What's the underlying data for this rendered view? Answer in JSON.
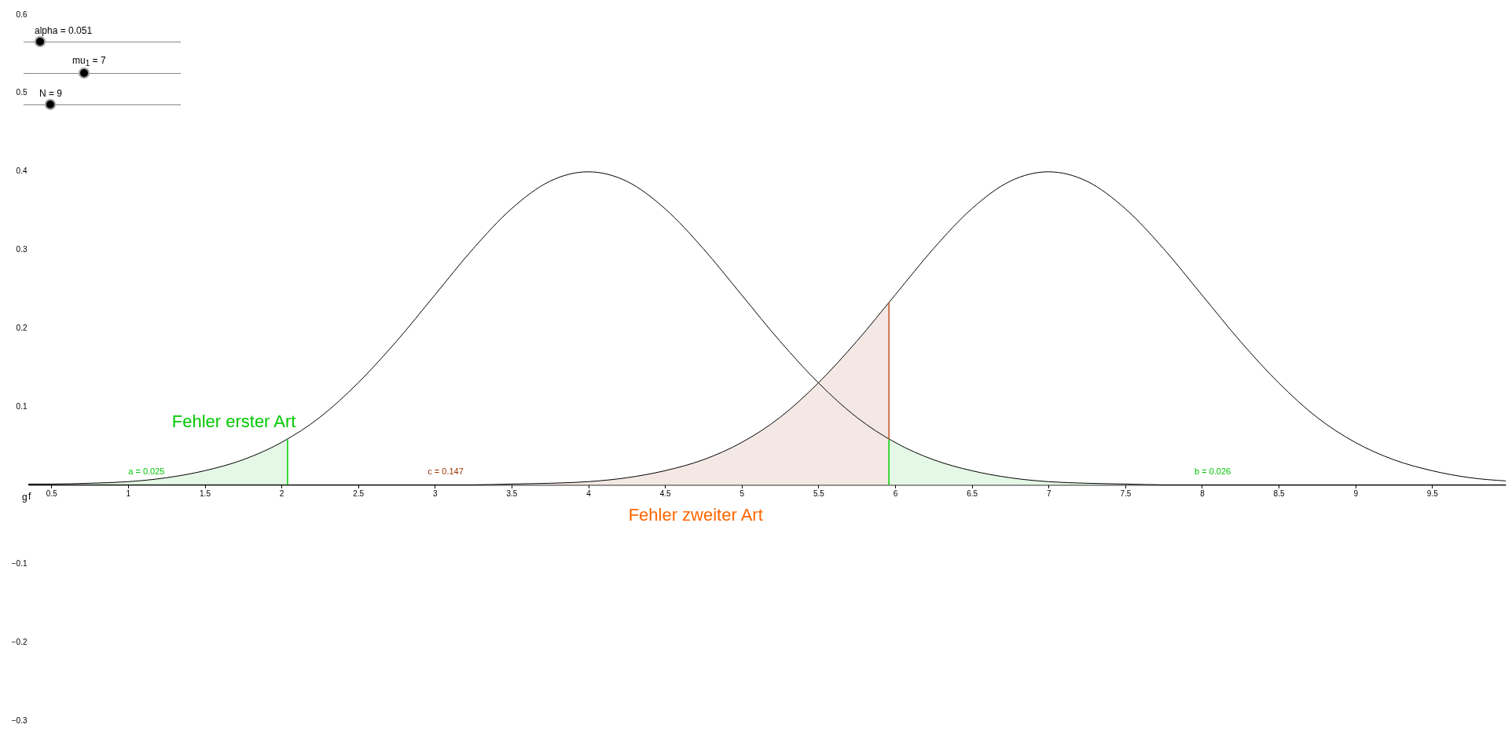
{
  "chart_data": {
    "type": "line",
    "xlim": [
      0.35,
      9.98
    ],
    "ylim": [
      -0.3,
      0.6
    ],
    "xticks": [
      0.5,
      1,
      1.5,
      2,
      2.5,
      3,
      3.5,
      4,
      4.5,
      5,
      5.5,
      6,
      6.5,
      7,
      7.5,
      8,
      8.5,
      9,
      9.5
    ],
    "yticks": [
      {
        "value": -0.3,
        "label": "−0.3"
      },
      {
        "value": -0.2,
        "label": "−0.2"
      },
      {
        "value": -0.1,
        "label": "−0.1"
      },
      0.1,
      0.2,
      0.3,
      0.4,
      0.5,
      0.6
    ],
    "grid": false,
    "series": [
      {
        "type": "area",
        "color": "#e5f8e5",
        "x": [
          0.35,
          0.5,
          0.75,
          1,
          1.25,
          1.5,
          1.75,
          2,
          2.04
        ],
        "values": [
          0.001,
          0.001,
          0.002,
          0.004,
          0.009,
          0.018,
          0.032,
          0.054,
          0.058
        ]
      },
      {
        "type": "area",
        "color": "#f3e8e4",
        "x": [
          0.35,
          3.25,
          3.5,
          3.75,
          4,
          4.25,
          4.5,
          4.75,
          5,
          5.25,
          5.5,
          5.75,
          5.96
        ],
        "values": [
          0,
          0,
          0.001,
          0.002,
          0.004,
          0.009,
          0.018,
          0.032,
          0.054,
          0.086,
          0.13,
          0.183,
          0.232
        ]
      },
      {
        "type": "area",
        "color": "#e5f8e5",
        "x": [
          5.96,
          6,
          6.25,
          6.5,
          6.75,
          7,
          7.25,
          7.5,
          7.75,
          9.98
        ],
        "values": [
          0.058,
          0.054,
          0.032,
          0.018,
          0.009,
          0.004,
          0.002,
          0.001,
          0,
          0
        ]
      },
      {
        "type": "line",
        "name": "f",
        "color": "#000000",
        "x": [
          0.35,
          0.5,
          0.75,
          1,
          1.25,
          1.5,
          1.75,
          2,
          2.25,
          2.5,
          2.75,
          3,
          3.25,
          3.5,
          3.75,
          4,
          4.25,
          4.5,
          4.75,
          5,
          5.25,
          5.5,
          5.75,
          6,
          6.25,
          6.5,
          6.75,
          7,
          7.25,
          7.5,
          7.75,
          9.98
        ],
        "values": [
          0.001,
          0.001,
          0.002,
          0.004,
          0.009,
          0.018,
          0.032,
          0.054,
          0.086,
          0.13,
          0.183,
          0.242,
          0.301,
          0.352,
          0.387,
          0.399,
          0.387,
          0.352,
          0.301,
          0.242,
          0.183,
          0.13,
          0.086,
          0.054,
          0.032,
          0.018,
          0.009,
          0.004,
          0.002,
          0.001,
          0,
          0
        ]
      },
      {
        "type": "line",
        "name": "g",
        "color": "#000000",
        "x": [
          0.35,
          3.25,
          3.5,
          3.75,
          4,
          4.25,
          4.5,
          4.75,
          5,
          5.25,
          5.5,
          5.75,
          6,
          6.25,
          6.5,
          6.75,
          7,
          7.25,
          7.5,
          7.75,
          8,
          8.25,
          8.5,
          8.75,
          9,
          9.25,
          9.5,
          9.75,
          9.98
        ],
        "values": [
          0,
          0,
          0.001,
          0.002,
          0.004,
          0.009,
          0.018,
          0.032,
          0.054,
          0.086,
          0.13,
          0.183,
          0.242,
          0.301,
          0.352,
          0.387,
          0.399,
          0.387,
          0.352,
          0.301,
          0.242,
          0.183,
          0.13,
          0.086,
          0.054,
          0.032,
          0.018,
          0.009,
          0.005
        ]
      },
      {
        "type": "line",
        "color": "#00cc00",
        "x": [
          2.04,
          2.04
        ],
        "values": [
          0,
          0.058
        ]
      },
      {
        "type": "line",
        "color": "#c8502a",
        "x": [
          5.96,
          5.96
        ],
        "values": [
          0.058,
          0.232
        ]
      },
      {
        "type": "line",
        "color": "#00cc00",
        "x": [
          5.96,
          5.96
        ],
        "values": [
          0,
          0.058
        ]
      }
    ],
    "annotations": [
      "alpha = 0.051",
      "mu$_{1}$ = 7",
      "N = 9",
      "Fehler erster Art",
      "Fehler zweiter Art",
      "a = 0.025",
      "c = 0.147",
      "b = 0.026"
    ]
  }
}
